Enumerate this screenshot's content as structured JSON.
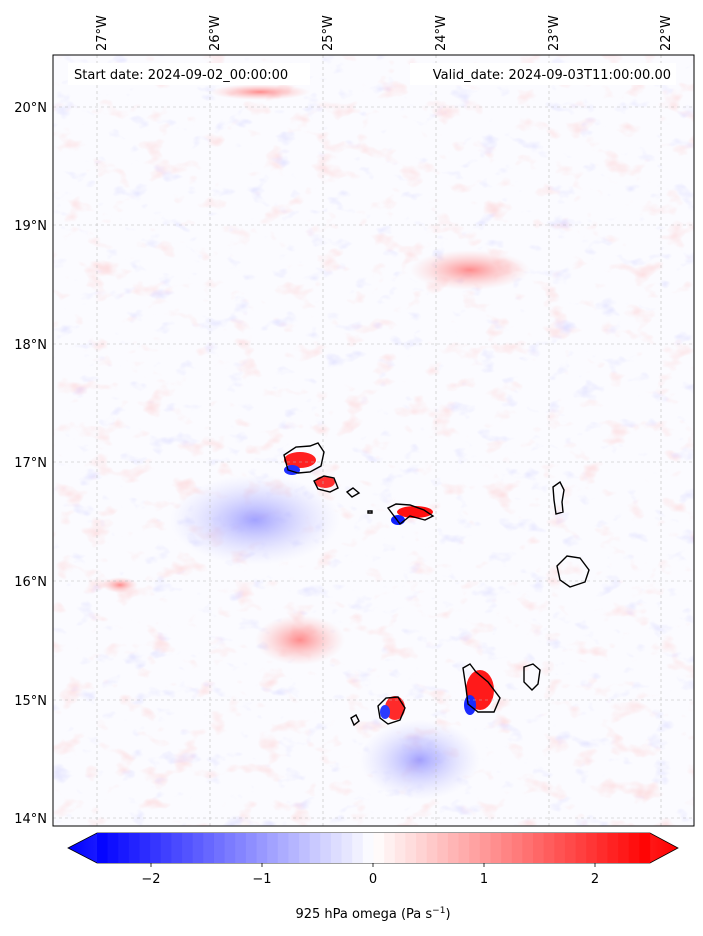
{
  "header": {
    "start": "Start date: 2024-09-02_00:00:00",
    "valid": "Valid_date: 2024-09-03T11:00:00.00"
  },
  "lon_labels": [
    "27°W",
    "26°W",
    "25°W",
    "24°W",
    "23°W",
    "22°W"
  ],
  "lat_labels": [
    "20°N",
    "19°N",
    "18°N",
    "17°N",
    "16°N",
    "15°N",
    "14°N"
  ],
  "colorbar": {
    "ticks": [
      "−2",
      "−1",
      "0",
      "1",
      "2"
    ],
    "label_main": "925 hPa omega (Pa s",
    "label_exp": "−1",
    "label_end": ")",
    "min": -2.6,
    "max": 2.6,
    "colors": {
      "negative": "#0000ff",
      "zero": "#ffffff",
      "positive": "#ff0000"
    }
  },
  "chart_data": {
    "type": "heatmap",
    "variable": "925 hPa omega",
    "units": "Pa s−1",
    "lon_range": [
      -27.4,
      -21.8
    ],
    "lat_range": [
      13.95,
      20.45
    ],
    "value_range": [
      -2.6,
      2.6
    ],
    "grid": true
  }
}
